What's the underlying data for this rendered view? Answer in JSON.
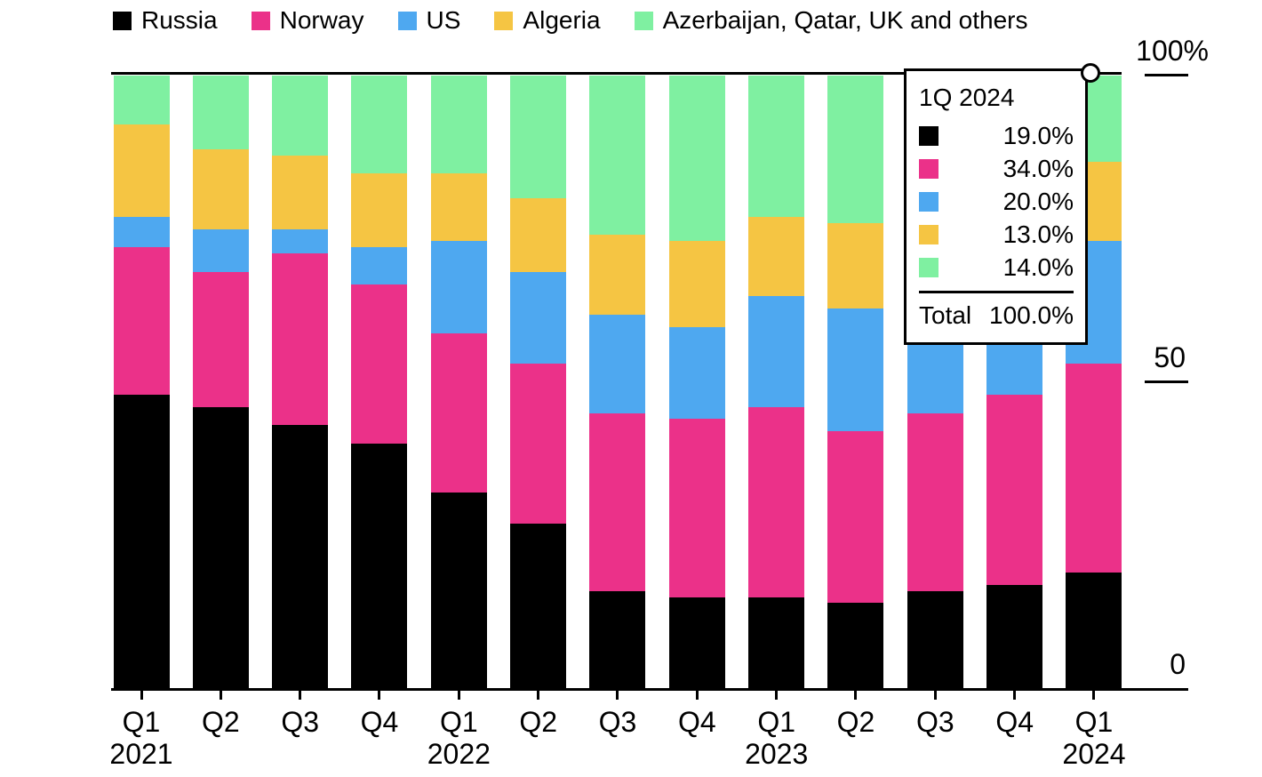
{
  "chart_data": {
    "type": "bar",
    "stacked": true,
    "unit": "%",
    "title": "",
    "legend_position": "top",
    "grid": "top-100-line-and-right-ticks",
    "ylim": [
      0,
      100
    ],
    "categories": [
      "Q1 2021",
      "Q2 2021",
      "Q3 2021",
      "Q4 2021",
      "Q1 2022",
      "Q2 2022",
      "Q3 2022",
      "Q4 2022",
      "Q1 2023",
      "Q2 2023",
      "Q3 2023",
      "Q4 2023",
      "Q1 2024"
    ],
    "x_tick_labels": [
      "Q1",
      "Q2",
      "Q3",
      "Q4",
      "Q1",
      "Q2",
      "Q3",
      "Q4",
      "Q1",
      "Q2",
      "Q3",
      "Q4",
      "Q1"
    ],
    "year_labels": [
      {
        "label": "2021",
        "category_index": 0
      },
      {
        "label": "2022",
        "category_index": 4
      },
      {
        "label": "2023",
        "category_index": 8
      },
      {
        "label": "2024",
        "category_index": 12
      }
    ],
    "y_axis_ticks": [
      {
        "label": "0",
        "value": 0,
        "line": false
      },
      {
        "label": "50",
        "value": 50,
        "line": true
      },
      {
        "label": "100%",
        "value": 100,
        "line": true
      }
    ],
    "series": [
      {
        "name": "Russia",
        "color": "#000000",
        "values": [
          48,
          46,
          43,
          40,
          32,
          27,
          16,
          15,
          15,
          14,
          16,
          17,
          19
        ]
      },
      {
        "name": "Norway",
        "color": "#EB3189",
        "values": [
          24,
          22,
          28,
          26,
          26,
          26,
          29,
          29,
          31,
          28,
          29,
          31,
          34
        ]
      },
      {
        "name": "US",
        "color": "#4EA8F0",
        "values": [
          5,
          7,
          4,
          6,
          15,
          15,
          16,
          15,
          18,
          20,
          17,
          17,
          20
        ]
      },
      {
        "name": "Algeria",
        "color": "#F5C543",
        "values": [
          15,
          13,
          12,
          12,
          11,
          12,
          13,
          14,
          13,
          14,
          14,
          13,
          13
        ]
      },
      {
        "name": "Azerbaijan, Qatar, UK and others",
        "color": "#7FF0A1",
        "values": [
          8,
          12,
          13,
          16,
          16,
          20,
          26,
          27,
          23,
          24,
          24,
          22,
          14
        ]
      }
    ],
    "hovered_category": "Q1 2024"
  },
  "tooltip": {
    "title": "1Q 2024",
    "rows": [
      {
        "series": "Russia",
        "color": "#000000",
        "value": "19.0%"
      },
      {
        "series": "Norway",
        "color": "#EB3189",
        "value": "34.0%"
      },
      {
        "series": "US",
        "color": "#4EA8F0",
        "value": "20.0%"
      },
      {
        "series": "Algeria",
        "color": "#F5C543",
        "value": "13.0%"
      },
      {
        "series": "Azerbaijan, Qatar, UK and others",
        "color": "#7FF0A1",
        "value": "14.0%"
      }
    ],
    "total_label": "Total",
    "total_value": "100.0%"
  }
}
